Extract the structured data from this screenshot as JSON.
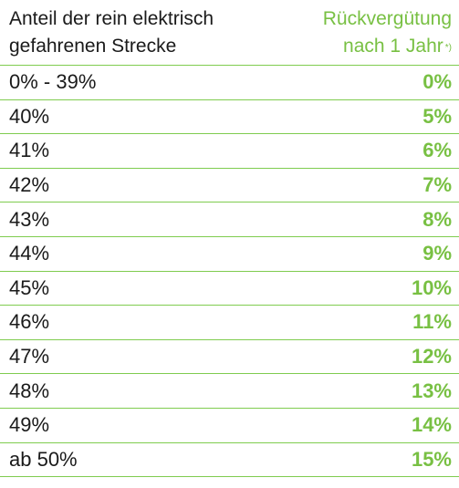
{
  "header": {
    "left_line1": "Anteil der rein elektrisch",
    "left_line2": "gefahrenen Strecke",
    "right_line1": "Rückvergütung",
    "right_line2": "nach 1 Jahr",
    "right_footnote": "*)"
  },
  "rows": [
    {
      "label": "0% - 39%",
      "value": "0%"
    },
    {
      "label": "40%",
      "value": "5%"
    },
    {
      "label": "41%",
      "value": "6%"
    },
    {
      "label": "42%",
      "value": "7%"
    },
    {
      "label": "43%",
      "value": "8%"
    },
    {
      "label": "44%",
      "value": "9%"
    },
    {
      "label": "45%",
      "value": "10%"
    },
    {
      "label": "46%",
      "value": "11%"
    },
    {
      "label": "47%",
      "value": "12%"
    },
    {
      "label": "48%",
      "value": "13%"
    },
    {
      "label": "49%",
      "value": "14%"
    },
    {
      "label": "ab 50%",
      "value": "15%"
    }
  ],
  "colors": {
    "accent": "#78c043",
    "divider": "#7fcc4f",
    "text": "#1a1a1a"
  }
}
